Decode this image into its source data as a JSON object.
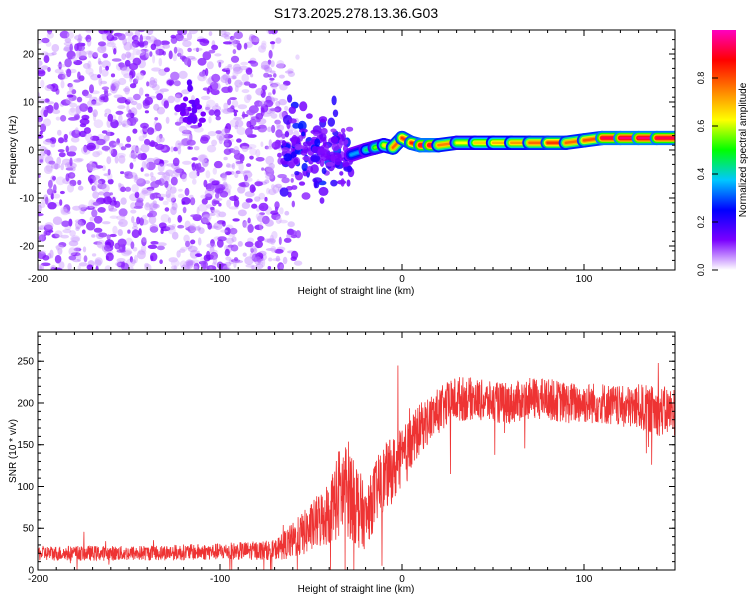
{
  "title": "S173.2025.278.13.36.G03",
  "chart_data": [
    {
      "type": "heatmap",
      "title": "S173.2025.278.13.36.G03",
      "xlabel": "Height of straight line (km)",
      "ylabel": "Frequency (Hz)",
      "xlim": [
        -200,
        150
      ],
      "ylim": [
        -25,
        25
      ],
      "xticks": [
        -200,
        -100,
        0,
        100
      ],
      "yticks": [
        -20,
        -10,
        0,
        10,
        20
      ],
      "colorbar": {
        "label": "Normalized spectral amplitude",
        "range": [
          0,
          1
        ],
        "ticks": [
          "0.0",
          "0.2",
          "0.4",
          "0.6",
          "0.8"
        ],
        "tick_values": [
          0,
          0.2,
          0.4,
          0.6,
          0.8
        ],
        "colors": [
          "#ffffff",
          "#7a00ff",
          "#0000ff",
          "#00c8ff",
          "#00ff00",
          "#ffff00",
          "#ff8000",
          "#ff0000",
          "#ff00c0"
        ]
      },
      "noise_region": [
        -200,
        -65
      ],
      "transition_region": [
        -65,
        -28
      ],
      "signal_ridge": {
        "x": [
          -28,
          -20,
          -15,
          -10,
          -5,
          0,
          5,
          10,
          15,
          20,
          30,
          40,
          50,
          60,
          70,
          80,
          90,
          100,
          110,
          120,
          130,
          140,
          150
        ],
        "y": [
          -1,
          0,
          0.5,
          1,
          0.5,
          2.5,
          1.5,
          1,
          1,
          1,
          1.5,
          1.5,
          1.5,
          1.5,
          1.5,
          1.5,
          1.5,
          2,
          2.5,
          2.5,
          2.5,
          2.5,
          2.5
        ],
        "amplitude": [
          0.3,
          0.4,
          0.5,
          0.6,
          0.7,
          0.85,
          0.8,
          0.9,
          0.95,
          0.9,
          0.6,
          0.65,
          0.7,
          0.7,
          0.75,
          0.8,
          0.85,
          0.7,
          0.9,
          0.95,
          0.95,
          0.95,
          0.9
        ]
      }
    },
    {
      "type": "line",
      "xlabel": "Height of straight line (km)",
      "ylabel": "SNR (10 * v/v)",
      "xlim": [
        -200,
        150
      ],
      "ylim": [
        0,
        285
      ],
      "xticks": [
        -200,
        -100,
        0,
        100
      ],
      "yticks": [
        0,
        50,
        100,
        150,
        200,
        250
      ],
      "color": "#ee3333",
      "envelope": {
        "x": [
          -200,
          -150,
          -100,
          -70,
          -60,
          -50,
          -40,
          -35,
          -30,
          -25,
          -20,
          -15,
          -10,
          -5,
          0,
          5,
          10,
          20,
          30,
          40,
          50,
          60,
          70,
          80,
          90,
          100,
          110,
          120,
          130,
          140,
          150
        ],
        "y": [
          20,
          20,
          22,
          24,
          35,
          50,
          70,
          90,
          100,
          80,
          60,
          90,
          110,
          120,
          130,
          150,
          170,
          190,
          205,
          205,
          200,
          200,
          205,
          205,
          200,
          200,
          200,
          195,
          195,
          190,
          190
        ],
        "noise": [
          9,
          9,
          10,
          12,
          22,
          30,
          40,
          55,
          60,
          55,
          35,
          40,
          40,
          40,
          40,
          35,
          30,
          28,
          28,
          25,
          25,
          25,
          25,
          25,
          25,
          25,
          25,
          25,
          28,
          30,
          30
        ]
      }
    }
  ]
}
